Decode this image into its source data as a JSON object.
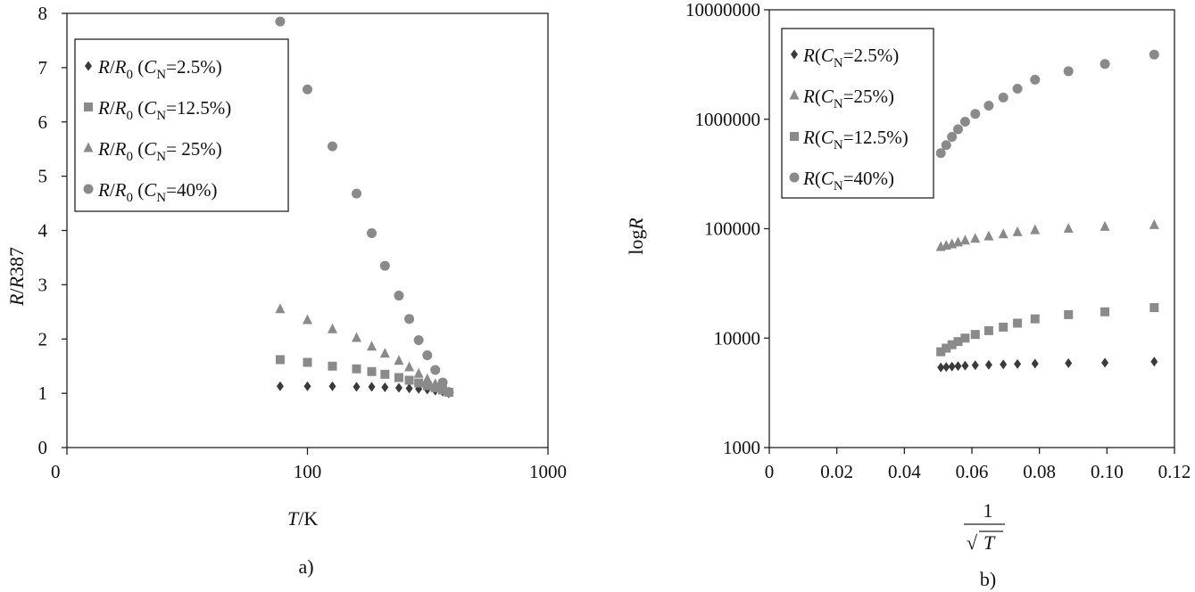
{
  "chart_data": [
    {
      "type": "scatter",
      "panel_label": "a)",
      "xlabel": "T/K",
      "ylabel": "R/R387",
      "x_scale": "log",
      "xlim": [
        10,
        1000
      ],
      "ylim": [
        0,
        8
      ],
      "x_tick_labels": [
        "0",
        "100",
        "1000"
      ],
      "y_tick_labels": [
        "0",
        "1",
        "2",
        "3",
        "4",
        "5",
        "6",
        "7",
        "8"
      ],
      "legend_position": "top-left",
      "grid": false,
      "series": [
        {
          "name": "R/R0 (CN =2.5%)",
          "marker": "diamond",
          "color": "#3a3a3a",
          "x": [
            77,
            100,
            127,
            160,
            185,
            210,
            240,
            265,
            290,
            315,
            340,
            365,
            387
          ],
          "y": [
            1.13,
            1.13,
            1.13,
            1.12,
            1.12,
            1.11,
            1.1,
            1.09,
            1.08,
            1.07,
            1.05,
            1.03,
            1.0
          ]
        },
        {
          "name": "R/R0 (CN =12.5%)",
          "marker": "square",
          "color": "#8a8a8a",
          "x": [
            77,
            100,
            127,
            160,
            185,
            210,
            240,
            265,
            290,
            315,
            340,
            365,
            387
          ],
          "y": [
            1.62,
            1.57,
            1.5,
            1.45,
            1.4,
            1.35,
            1.29,
            1.24,
            1.19,
            1.14,
            1.1,
            1.06,
            1.02
          ]
        },
        {
          "name": "R/R0 (CN = 25%)",
          "marker": "triangle",
          "color": "#8a8a8a",
          "x": [
            77,
            100,
            127,
            160,
            185,
            210,
            240,
            265,
            290,
            315,
            340,
            365,
            387
          ],
          "y": [
            2.55,
            2.35,
            2.18,
            2.02,
            1.86,
            1.73,
            1.6,
            1.48,
            1.36,
            1.26,
            1.17,
            1.09,
            1.02
          ]
        },
        {
          "name": "R/R0 (CN =40%)",
          "marker": "circle",
          "color": "#8a8a8a",
          "x": [
            77,
            100,
            127,
            160,
            185,
            210,
            240,
            265,
            290,
            315,
            340,
            365,
            387
          ],
          "y": [
            7.85,
            6.6,
            5.55,
            4.68,
            3.95,
            3.35,
            2.8,
            2.37,
            1.98,
            1.7,
            1.43,
            1.2,
            1.02
          ]
        }
      ]
    },
    {
      "type": "scatter",
      "panel_label": "b)",
      "xlabel": "1/√T",
      "ylabel": "logR",
      "y_scale": "log",
      "xlim": [
        0,
        0.12
      ],
      "ylim": [
        1000,
        10000000
      ],
      "x_tick_labels": [
        "0",
        "0.02",
        "0.04",
        "0.06",
        "0.08",
        "0.10",
        "0.12"
      ],
      "y_tick_labels": [
        "1000",
        "10000",
        "100000",
        "1000000",
        "10000000"
      ],
      "legend_position": "top-left",
      "grid": false,
      "series": [
        {
          "name": "R(CN=2.5%)",
          "marker": "diamond",
          "color": "#3a3a3a",
          "x": [
            0.0508,
            0.0524,
            0.0541,
            0.0559,
            0.058,
            0.061,
            0.065,
            0.0693,
            0.0735,
            0.0787,
            0.0886,
            0.0994,
            0.114
          ],
          "y": [
            5400,
            5450,
            5500,
            5550,
            5600,
            5650,
            5700,
            5750,
            5800,
            5850,
            5900,
            5950,
            6100
          ]
        },
        {
          "name": "R(CN=25%)",
          "marker": "triangle",
          "color": "#8a8a8a",
          "x": [
            0.0508,
            0.0524,
            0.0541,
            0.0559,
            0.058,
            0.061,
            0.065,
            0.0693,
            0.0735,
            0.0787,
            0.0886,
            0.0994,
            0.114
          ],
          "y": [
            68000,
            70000,
            72000,
            75000,
            78000,
            81000,
            85000,
            89000,
            93000,
            97000,
            100000,
            104000,
            108000
          ]
        },
        {
          "name": "R(CN=12.5%)",
          "marker": "square",
          "color": "#8a8a8a",
          "x": [
            0.0508,
            0.0524,
            0.0541,
            0.0559,
            0.058,
            0.061,
            0.065,
            0.0693,
            0.0735,
            0.0787,
            0.0886,
            0.0994,
            0.114
          ],
          "y": [
            7500,
            8100,
            8700,
            9300,
            10000,
            10800,
            11700,
            12600,
            13700,
            15000,
            16400,
            17400,
            19000
          ]
        },
        {
          "name": "R(CN=40%)",
          "marker": "circle",
          "color": "#8a8a8a",
          "x": [
            0.0508,
            0.0524,
            0.0541,
            0.0559,
            0.058,
            0.061,
            0.065,
            0.0693,
            0.0735,
            0.0787,
            0.0886,
            0.0994,
            0.114
          ],
          "y": [
            490000,
            580000,
            690000,
            810000,
            950000,
            1120000,
            1330000,
            1580000,
            1900000,
            2300000,
            2750000,
            3200000,
            3900000
          ]
        }
      ]
    }
  ]
}
